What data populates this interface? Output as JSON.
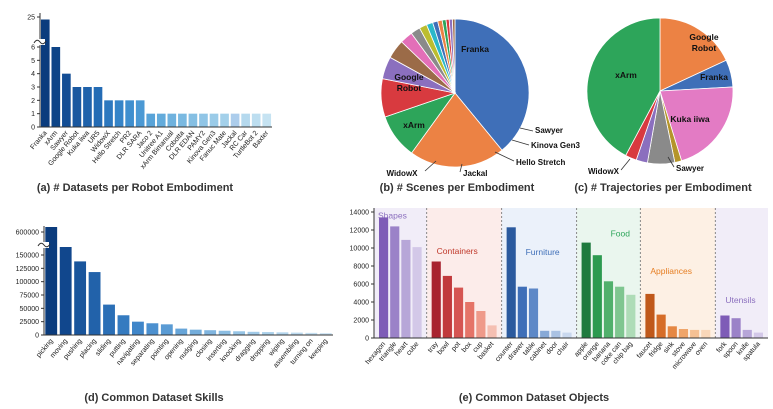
{
  "captions": {
    "a": "(a) # Datasets per Robot Embodiment",
    "b": "(b) # Scenes per Embodiment",
    "c": "(c) # Trajectories per Embodiment",
    "d": "(d) Common Dataset Skills",
    "e": "(e) Common Dataset Objects"
  },
  "chart_data": [
    {
      "id": "a",
      "type": "bar",
      "broken_axis": true,
      "lower_ticks": [
        "0",
        "1",
        "2",
        "3",
        "4",
        "5",
        "6"
      ],
      "upper_ticks": [
        "25"
      ],
      "categories": [
        "Franka",
        "xArm",
        "Sawyer",
        "Google Robot",
        "Kuka iiwa",
        "UR5",
        "WidowX",
        "Hello Stretch",
        "PR2",
        "DLR SARA",
        "Jaco 2",
        "Unitree A1",
        "xArm Bimanual",
        "Cobotta",
        "DLR EDAN",
        "PAMY2",
        "Kinova Gen3",
        "Fanuc Mate",
        "Jackal",
        "RC Car",
        "TurtleBot 2",
        "Baxter"
      ],
      "values": [
        24,
        6,
        4,
        3,
        3,
        3,
        2,
        2,
        2,
        2,
        1,
        1,
        1,
        1,
        1,
        1,
        1,
        1,
        1,
        1,
        1,
        1
      ],
      "colors": [
        "#0b3c7d",
        "#0d4487",
        "#134d94",
        "#1a58a0",
        "#1f62ab",
        "#246cb5",
        "#2d78bf",
        "#3584c8",
        "#3f8fcf",
        "#4b99d4",
        "#58a3d8",
        "#63abdb",
        "#6fb2de",
        "#7ab9e1",
        "#85bfe3",
        "#90c5e6",
        "#9acbe8",
        "#a3d0ea",
        "#accdec",
        "#b5d9ee",
        "#bddef0",
        "#c6e3f2"
      ]
    },
    {
      "id": "b",
      "type": "pie",
      "slices": [
        {
          "label": "Franka",
          "value": 28,
          "color": "#3f6fb8"
        },
        {
          "label": "Google Robot",
          "value": 15,
          "color": "#ec8244"
        },
        {
          "label": "xArm",
          "value": 7,
          "color": "#2da55a"
        },
        {
          "label": "WidowX",
          "value": 6,
          "color": "#d83a3f"
        },
        {
          "label": "Jackal",
          "value": 3.5,
          "color": "#8b6fbe"
        },
        {
          "label": "Hello Stretch",
          "value": 3,
          "color": "#9b6b48"
        },
        {
          "label": "",
          "value": 2,
          "color": "#e36fb8"
        },
        {
          "label": "",
          "value": 1.5,
          "color": "#8a8a8a"
        },
        {
          "label": "Kinova Gen3",
          "value": 1.2,
          "color": "#bcbd2f"
        },
        {
          "label": "Sawyer",
          "value": 1,
          "color": "#2bb8c9"
        },
        {
          "label": "",
          "value": 0.8,
          "color": "#3f6fb8"
        },
        {
          "label": "",
          "value": 0.7,
          "color": "#ec8244"
        },
        {
          "label": "",
          "value": 0.6,
          "color": "#2da55a"
        },
        {
          "label": "",
          "value": 0.5,
          "color": "#d83a3f"
        },
        {
          "label": "",
          "value": 0.5,
          "color": "#8b6fbe"
        },
        {
          "label": "",
          "value": 0.4,
          "color": "#9b6b48"
        }
      ]
    },
    {
      "id": "c",
      "type": "pie",
      "slices": [
        {
          "label": "Google Robot",
          "value": 18,
          "color": "#ec8244"
        },
        {
          "label": "Franka",
          "value": 6,
          "color": "#3f6fb8"
        },
        {
          "label": "Kuka iiwa",
          "value": 21,
          "color": "#e37bc4"
        },
        {
          "label": "",
          "value": 1.5,
          "color": "#b5952a"
        },
        {
          "label": "Sawyer",
          "value": 6,
          "color": "#8a8a8a"
        },
        {
          "label": "",
          "value": 2.5,
          "color": "#8b6fbe"
        },
        {
          "label": "WidowX",
          "value": 2.5,
          "color": "#d83a3f"
        },
        {
          "label": "xArm",
          "value": 42,
          "color": "#2da55a"
        }
      ]
    },
    {
      "id": "d",
      "type": "bar",
      "broken_axis": true,
      "lower_ticks": [
        "0",
        "25000",
        "50000",
        "75000",
        "100000",
        "125000",
        "150000"
      ],
      "upper_ticks": [
        "600000"
      ],
      "categories": [
        "picking",
        "moving",
        "pushing",
        "placing",
        "sliding",
        "putting",
        "navigating",
        "separating",
        "pointing",
        "opening",
        "nudging",
        "closing",
        "inserting",
        "knocking",
        "dragging",
        "dropping",
        "wiping",
        "assembling",
        "turning on",
        "keeping"
      ],
      "values": [
        610000,
        157000,
        138000,
        118000,
        57000,
        37000,
        25000,
        22000,
        20000,
        12000,
        10000,
        9000,
        8000,
        7000,
        6000,
        5500,
        5000,
        4500,
        4000,
        3500
      ],
      "colors": [
        "#0b3c7d",
        "#11478d",
        "#19559c",
        "#2262aa",
        "#2b6fb6",
        "#357bc0",
        "#4086c9",
        "#4c90cf",
        "#5a9bd4",
        "#67a5d8",
        "#74addb",
        "#80b5df",
        "#8bbde2",
        "#96c4e5",
        "#a0cae8",
        "#aad0ea",
        "#b3d5ed",
        "#bcdaef",
        "#c4dff1",
        "#cbe3f3"
      ]
    },
    {
      "id": "e",
      "type": "bar",
      "yticks": [
        "0",
        "2000",
        "4000",
        "6000",
        "8000",
        "10000",
        "12000",
        "14000"
      ],
      "ylim": [
        0,
        14000
      ],
      "groups": [
        {
          "name": "Shapes",
          "label_color": "#8b6fbe",
          "bg": "#f1edf8",
          "categories": [
            "hexagon",
            "triangle",
            "heart",
            "cube"
          ],
          "values": [
            13400,
            12400,
            10900,
            10100
          ],
          "colors": [
            "#7e5cb7",
            "#9b82c8",
            "#b7a6d8",
            "#d3c8e8"
          ]
        },
        {
          "name": "Containers",
          "label_color": "#c0392b",
          "bg": "#fcecea",
          "categories": [
            "tray",
            "bowl",
            "pot",
            "box",
            "cup",
            "basket"
          ],
          "values": [
            8500,
            6900,
            5600,
            4000,
            3000,
            1400
          ],
          "colors": [
            "#a8232f",
            "#c13a3c",
            "#d55552",
            "#e57468",
            "#ef9a8a",
            "#f5bfb2"
          ]
        },
        {
          "name": "Furniture",
          "label_color": "#3f6fb8",
          "bg": "#ebf1fa",
          "categories": [
            "counter",
            "drawer",
            "table",
            "cabinet",
            "door",
            "chair"
          ],
          "values": [
            12300,
            5700,
            5500,
            800,
            800,
            600
          ],
          "colors": [
            "#2b5a9e",
            "#3f6fb8",
            "#5d88c7",
            "#87a9d7",
            "#aac2e3",
            "#c9d8ee"
          ]
        },
        {
          "name": "Food",
          "label_color": "#2da55a",
          "bg": "#eaf6ee",
          "categories": [
            "apple",
            "orange",
            "banana",
            "coke can",
            "chip bag"
          ],
          "values": [
            10600,
            9200,
            6300,
            5700,
            4800
          ],
          "colors": [
            "#1f7a3e",
            "#2d9a50",
            "#51b06c",
            "#7fc690",
            "#aedcb7"
          ]
        },
        {
          "name": "Appliances",
          "label_color": "#e67e22",
          "bg": "#fdf0e4",
          "categories": [
            "faucet",
            "fridge",
            "sink",
            "stove",
            "microwave",
            "oven"
          ],
          "values": [
            4900,
            2600,
            1300,
            1000,
            900,
            900
          ],
          "colors": [
            "#c0581a",
            "#d66d28",
            "#e58743",
            "#efa56a",
            "#f5c093",
            "#f9d7b9"
          ]
        },
        {
          "name": "Utensils",
          "label_color": "#8b6fbe",
          "bg": "#f1edf8",
          "categories": [
            "fork",
            "spoon",
            "knife",
            "spatula"
          ],
          "values": [
            2500,
            2200,
            900,
            600
          ],
          "colors": [
            "#7e5cb7",
            "#9b82c8",
            "#b7a6d8",
            "#d3c8e8"
          ]
        }
      ]
    }
  ]
}
